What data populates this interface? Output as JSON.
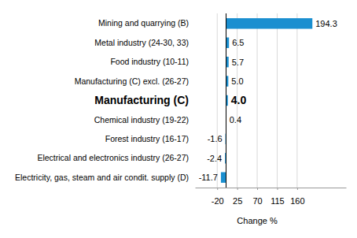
{
  "chart_data": {
    "type": "bar",
    "orientation": "horizontal",
    "x_label": "Change %",
    "categories": [
      "Mining and quarrying (B)",
      "Metal industry (24-30, 33)",
      "Food industry (10-11)",
      "Manufacturing (C) excl. (26-27)",
      "Manufacturing (C)",
      "Chemical industry (19-22)",
      "Forest industry (16-17)",
      "Electrical and electronics industry (26-27)",
      "Electricity, gas, steam and air condit. supply (D)"
    ],
    "values": [
      194.3,
      6.5,
      5.7,
      5.0,
      4.0,
      0.4,
      -1.6,
      -2.4,
      -11.7
    ],
    "value_labels": [
      "194.3",
      "6.5",
      "5.7",
      "5.0",
      "4.0",
      "0.4",
      "-1.6",
      "-2.4",
      "-11.7"
    ],
    "color": "#1a8fd0",
    "xlim": [
      -70,
      270
    ],
    "xticks": [
      -20,
      25,
      70,
      115,
      160
    ],
    "grid": true,
    "data_labels": true
  }
}
